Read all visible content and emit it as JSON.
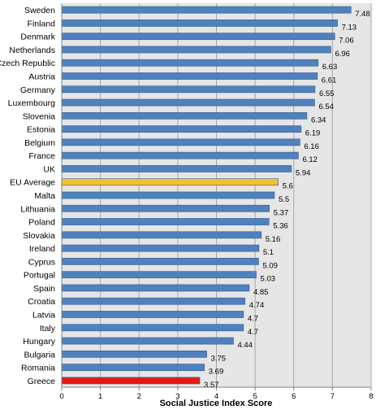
{
  "chart_data": {
    "type": "bar",
    "orientation": "horizontal",
    "xlabel": "Social Justice Index Score",
    "xlim": [
      0,
      8
    ],
    "xticks": [
      "0",
      "1",
      "2",
      "3",
      "4",
      "5",
      "6",
      "7",
      "8"
    ],
    "grid": "vertical",
    "categories": [
      "Sweden",
      "Finland",
      "Denmark",
      "Netherlands",
      "Czech Republic",
      "Austria",
      "Germany",
      "Luxembourg",
      "Slovenia",
      "Estonia",
      "Belgium",
      "France",
      "UK",
      "EU Average",
      "Malta",
      "Lithuania",
      "Poland",
      "Slovakia",
      "Ireland",
      "Cyprus",
      "Portugal",
      "Spain",
      "Croatia",
      "Latvia",
      "Italy",
      "Hungary",
      "Bulgaria",
      "Romania",
      "Greece"
    ],
    "values": [
      7.48,
      7.13,
      7.06,
      6.96,
      6.63,
      6.61,
      6.55,
      6.54,
      6.34,
      6.19,
      6.16,
      6.12,
      5.94,
      5.6,
      5.5,
      5.37,
      5.36,
      5.16,
      5.1,
      5.09,
      5.03,
      4.85,
      4.74,
      4.7,
      4.7,
      4.44,
      3.75,
      3.69,
      3.57
    ],
    "value_labels": [
      "7.48",
      "7.13",
      "7.06",
      "6.96",
      "6.63",
      "6.61",
      "6.55",
      "6.54",
      "6.34",
      "6.19",
      "6.16",
      "6.12",
      "5.94",
      "5.6",
      "5.5",
      "5.37",
      "5.36",
      "5.16",
      "5.1",
      "5.09",
      "5.03",
      "4.85",
      "4.74",
      "4.7",
      "4.7",
      "4.44",
      "3.75",
      "3.69",
      "3.57"
    ],
    "colors": {
      "default": "#4f81bd",
      "highlight_eu": "#f2c12e",
      "highlight_greece": "#e31a1a",
      "plot_background": "#e6e6e6",
      "grid": "#a6a6a6"
    },
    "highlight": {
      "EU Average": "highlight_eu",
      "Greece": "highlight_greece"
    }
  }
}
